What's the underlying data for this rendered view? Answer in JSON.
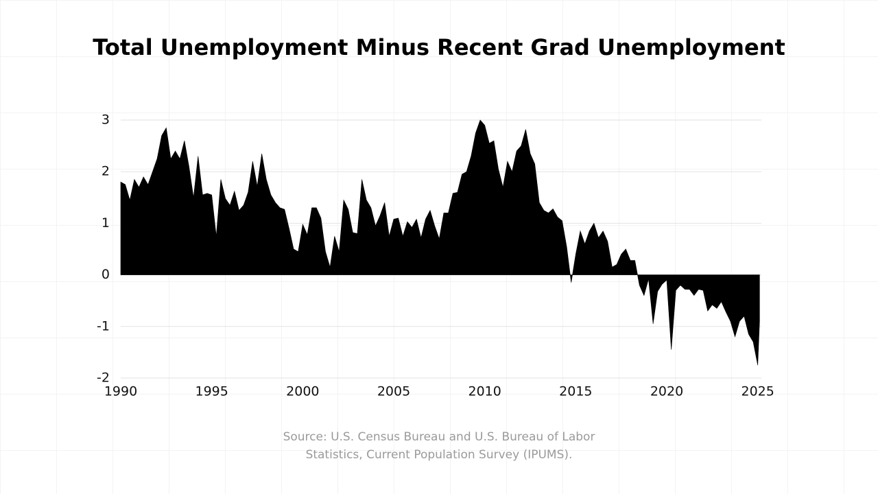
{
  "chart_data": {
    "type": "area",
    "title": "Total Unemployment Minus Recent Grad Unemployment",
    "source": "Source: U.S. Census Bureau and U.S. Bureau of Labor Statistics, Current Population Survey (IPUMS).",
    "color": "#000000",
    "x": [
      1990,
      1990.25,
      1990.5,
      1990.75,
      1991,
      1991.25,
      1991.5,
      1991.75,
      1992,
      1992.25,
      1992.5,
      1992.75,
      1993,
      1993.25,
      1993.5,
      1993.75,
      1994,
      1994.25,
      1994.5,
      1994.75,
      1995,
      1995.25,
      1995.5,
      1995.75,
      1996,
      1996.25,
      1996.5,
      1996.75,
      1997,
      1997.25,
      1997.5,
      1997.75,
      1998,
      1998.25,
      1998.5,
      1998.75,
      1999,
      1999.25,
      1999.5,
      1999.75,
      2000,
      2000.25,
      2000.5,
      2000.75,
      2001,
      2001.25,
      2001.5,
      2001.75,
      2002,
      2002.25,
      2002.5,
      2002.75,
      2003,
      2003.25,
      2003.5,
      2003.75,
      2004,
      2004.25,
      2004.5,
      2004.75,
      2005,
      2005.25,
      2005.5,
      2005.75,
      2006,
      2006.25,
      2006.5,
      2006.75,
      2007,
      2007.25,
      2007.5,
      2007.75,
      2008,
      2008.25,
      2008.5,
      2008.75,
      2009,
      2009.25,
      2009.5,
      2009.75,
      2010,
      2010.25,
      2010.5,
      2010.75,
      2011,
      2011.25,
      2011.5,
      2011.75,
      2012,
      2012.25,
      2012.5,
      2012.75,
      2013,
      2013.25,
      2013.5,
      2013.75,
      2014,
      2014.25,
      2014.5,
      2014.75,
      2015,
      2015.25,
      2015.5,
      2015.75,
      2016,
      2016.25,
      2016.5,
      2016.75,
      2017,
      2017.25,
      2017.5,
      2017.75,
      2018,
      2018.25,
      2018.5,
      2018.75,
      2019,
      2019.25,
      2019.5,
      2019.75,
      2020,
      2020.25,
      2020.5,
      2020.75,
      2021,
      2021.25,
      2021.5,
      2021.75,
      2022,
      2022.25,
      2022.5,
      2022.75,
      2023,
      2023.25,
      2023.5,
      2023.75,
      2024,
      2024.25,
      2024.5,
      2024.75,
      2025,
      2025.1
    ],
    "values": [
      1.8,
      1.75,
      1.45,
      1.85,
      1.7,
      1.9,
      1.75,
      2.0,
      2.25,
      2.7,
      2.85,
      2.25,
      2.4,
      2.25,
      2.6,
      2.1,
      1.5,
      2.3,
      1.55,
      1.58,
      1.55,
      0.75,
      1.85,
      1.48,
      1.35,
      1.62,
      1.25,
      1.35,
      1.6,
      2.2,
      1.72,
      2.35,
      1.85,
      1.55,
      1.4,
      1.3,
      1.27,
      0.9,
      0.5,
      0.45,
      0.98,
      0.78,
      1.3,
      1.3,
      1.1,
      0.45,
      0.15,
      0.75,
      0.45,
      1.45,
      1.27,
      0.82,
      0.8,
      1.85,
      1.45,
      1.3,
      0.95,
      1.15,
      1.4,
      0.75,
      1.08,
      1.1,
      0.75,
      1.03,
      0.92,
      1.08,
      0.72,
      1.08,
      1.25,
      0.95,
      0.7,
      1.2,
      1.2,
      1.58,
      1.6,
      1.95,
      2.0,
      2.3,
      2.75,
      3.0,
      2.9,
      2.55,
      2.6,
      2.05,
      1.7,
      2.2,
      2.0,
      2.4,
      2.5,
      2.82,
      2.35,
      2.15,
      1.4,
      1.25,
      1.2,
      1.28,
      1.12,
      1.05,
      0.55,
      -0.15,
      0.4,
      0.85,
      0.6,
      0.85,
      1.0,
      0.72,
      0.85,
      0.65,
      0.15,
      0.2,
      0.4,
      0.5,
      0.28,
      0.28,
      -0.2,
      -0.4,
      -0.08,
      -0.95,
      -0.32,
      -0.18,
      -0.1,
      -1.45,
      -0.3,
      -0.2,
      -0.28,
      -0.28,
      -0.4,
      -0.28,
      -0.3,
      -0.7,
      -0.58,
      -0.65,
      -0.52,
      -0.72,
      -0.9,
      -1.2,
      -0.9,
      -0.8,
      -1.15,
      -1.3,
      -1.75,
      -0.9
    ],
    "xlim": [
      1990,
      2025.2
    ],
    "xticks": [
      1990,
      1995,
      2000,
      2005,
      2010,
      2015,
      2020,
      2025
    ],
    "ylim": [
      -2,
      3
    ],
    "yticks": [
      -2,
      -1,
      0,
      1,
      2,
      3
    ],
    "grid": true
  }
}
